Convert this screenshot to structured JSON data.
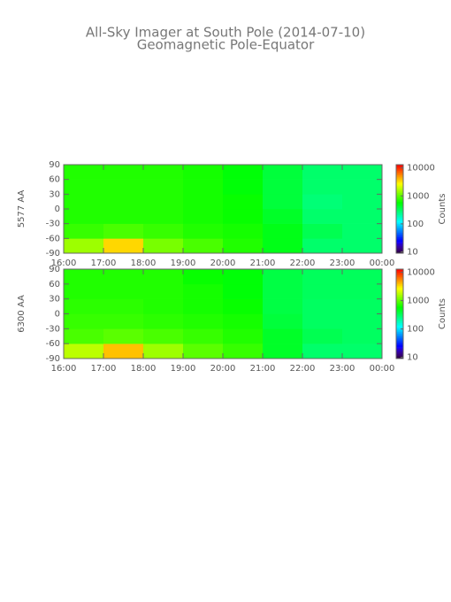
{
  "chart_data": [
    {
      "type": "heatmap",
      "title": "All-Sky Imager at South Pole (2014-07-10)",
      "subtitle": "Geomagnetic Pole-Equator",
      "ylabel": "5577 AA",
      "x_bins": [
        16,
        17,
        18,
        19,
        20,
        21,
        22,
        23,
        24
      ],
      "y_bins": [
        -90,
        -60,
        -30,
        0,
        30,
        60,
        90
      ],
      "z": [
        [
          1500,
          3500,
          1200,
          900,
          700,
          500,
          300,
          300
        ],
        [
          800,
          900,
          800,
          700,
          650,
          500,
          350,
          300
        ],
        [
          700,
          700,
          700,
          650,
          600,
          450,
          300,
          300
        ],
        [
          700,
          700,
          700,
          650,
          600,
          400,
          280,
          300
        ],
        [
          700,
          700,
          700,
          650,
          550,
          400,
          300,
          300
        ],
        [
          700,
          700,
          700,
          650,
          550,
          400,
          300,
          300
        ]
      ],
      "xlim": [
        16,
        24
      ],
      "xticks": [
        {
          "value": 16,
          "label": "16:00"
        },
        {
          "value": 17,
          "label": "17:00"
        },
        {
          "value": 18,
          "label": "18:00"
        },
        {
          "value": 19,
          "label": "19:00"
        },
        {
          "value": 20,
          "label": "20:00"
        },
        {
          "value": 21,
          "label": "21:00"
        },
        {
          "value": 22,
          "label": "22:00"
        },
        {
          "value": 23,
          "label": "23:00"
        },
        {
          "value": 24,
          "label": "00:00"
        }
      ],
      "ylim": [
        -90,
        90
      ],
      "yticks": [
        -90,
        -60,
        -30,
        0,
        30,
        60,
        90
      ],
      "zlim": [
        9,
        13000
      ],
      "zscale": "log",
      "zticks": [
        10,
        100,
        1000,
        10000
      ],
      "zlabel": "Counts"
    },
    {
      "type": "heatmap",
      "ylabel": "6300 AA",
      "x_bins": [
        16,
        17,
        18,
        19,
        20,
        21,
        22,
        23,
        24
      ],
      "y_bins": [
        -90,
        -60,
        -30,
        0,
        30,
        60,
        90
      ],
      "z": [
        [
          1800,
          4000,
          1500,
          1000,
          800,
          450,
          300,
          300
        ],
        [
          900,
          1000,
          900,
          800,
          700,
          450,
          350,
          320
        ],
        [
          800,
          800,
          750,
          700,
          650,
          400,
          320,
          320
        ],
        [
          750,
          750,
          700,
          650,
          600,
          380,
          320,
          320
        ],
        [
          700,
          700,
          700,
          650,
          550,
          380,
          330,
          330
        ],
        [
          700,
          700,
          700,
          600,
          550,
          380,
          330,
          330
        ]
      ],
      "xlim": [
        16,
        24
      ],
      "xticks": [
        {
          "value": 16,
          "label": "16:00"
        },
        {
          "value": 17,
          "label": "17:00"
        },
        {
          "value": 18,
          "label": "18:00"
        },
        {
          "value": 19,
          "label": "19:00"
        },
        {
          "value": 20,
          "label": "20:00"
        },
        {
          "value": 21,
          "label": "21:00"
        },
        {
          "value": 22,
          "label": "22:00"
        },
        {
          "value": 23,
          "label": "23:00"
        },
        {
          "value": 24,
          "label": "00:00"
        }
      ],
      "ylim": [
        -90,
        90
      ],
      "yticks": [
        -90,
        -60,
        -30,
        0,
        30,
        60,
        90
      ],
      "zlim": [
        9,
        13000
      ],
      "zscale": "log",
      "zticks": [
        10,
        100,
        1000,
        10000
      ],
      "zlabel": "Counts"
    }
  ]
}
